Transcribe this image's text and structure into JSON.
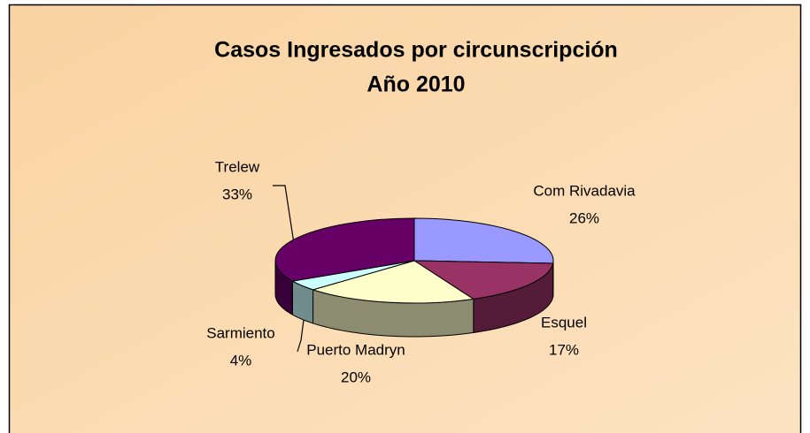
{
  "chart_data": {
    "type": "pie",
    "title": [
      "Casos Ingresados por circunscripción",
      "Año 2010"
    ],
    "categories": [
      "Com Rivadavia",
      "Esquel",
      "Puerto Madryn",
      "Sarmiento",
      "Trelew"
    ],
    "values": [
      26,
      17,
      20,
      4,
      33
    ],
    "value_labels": [
      "26%",
      "17%",
      "20%",
      "4%",
      "33%"
    ],
    "colors": [
      "#9999FF",
      "#993366",
      "#FFFFCC",
      "#CCFFFF",
      "#660066"
    ]
  }
}
